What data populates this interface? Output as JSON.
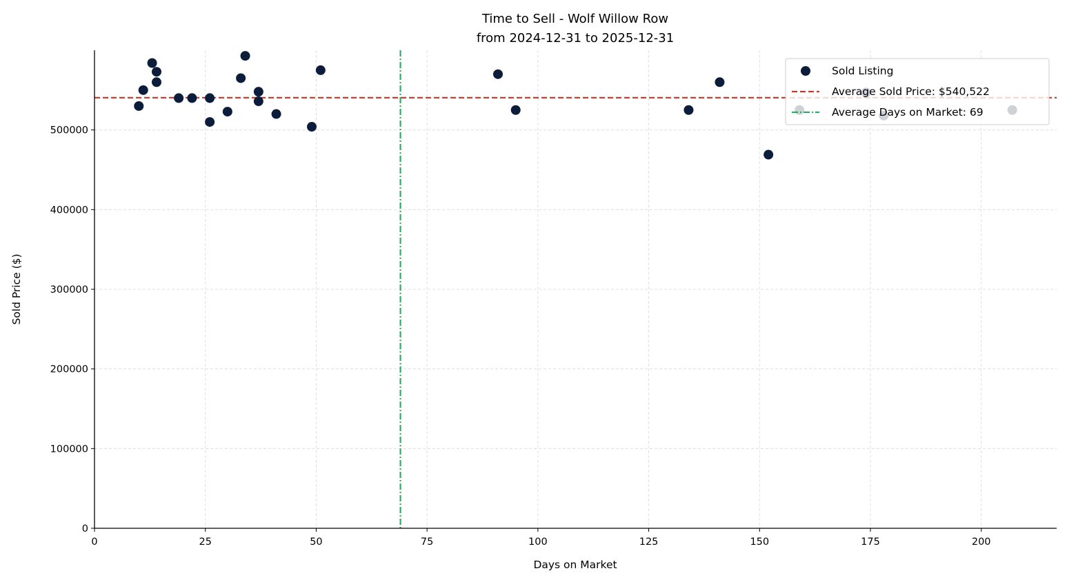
{
  "chart_data": {
    "type": "scatter",
    "title": "Time to Sell - Wolf Willow Row",
    "subtitle": "from 2024-12-31 to 2025-12-31",
    "xlabel": "Days on Market",
    "ylabel": "Sold Price ($)",
    "xlim": [
      0,
      217
    ],
    "ylim": [
      0,
      600000
    ],
    "xticks": [
      0,
      25,
      50,
      75,
      100,
      125,
      150,
      175,
      200
    ],
    "yticks": [
      0,
      100000,
      200000,
      300000,
      400000,
      500000
    ],
    "grid": true,
    "legend_position": "top-right",
    "series": [
      {
        "name": "Sold Listing",
        "color": "#0b1d3a",
        "points": [
          {
            "x": 10,
            "y": 530000
          },
          {
            "x": 11,
            "y": 550000
          },
          {
            "x": 13,
            "y": 584000
          },
          {
            "x": 14,
            "y": 573000
          },
          {
            "x": 14,
            "y": 560000
          },
          {
            "x": 19,
            "y": 540000
          },
          {
            "x": 22,
            "y": 540000
          },
          {
            "x": 26,
            "y": 540000
          },
          {
            "x": 26,
            "y": 510000
          },
          {
            "x": 30,
            "y": 523000
          },
          {
            "x": 33,
            "y": 565000
          },
          {
            "x": 34,
            "y": 593000
          },
          {
            "x": 37,
            "y": 548000
          },
          {
            "x": 37,
            "y": 536000
          },
          {
            "x": 41,
            "y": 520000
          },
          {
            "x": 49,
            "y": 504000
          },
          {
            "x": 51,
            "y": 575000
          },
          {
            "x": 91,
            "y": 570000
          },
          {
            "x": 95,
            "y": 525000
          },
          {
            "x": 134,
            "y": 525000
          },
          {
            "x": 141,
            "y": 560000
          },
          {
            "x": 152,
            "y": 469000
          },
          {
            "x": 159,
            "y": 525000
          },
          {
            "x": 174,
            "y": 547000
          },
          {
            "x": 178,
            "y": 518000
          },
          {
            "x": 207,
            "y": 525000
          }
        ]
      }
    ],
    "reference_lines": {
      "avg_price": {
        "value": 540522,
        "label": "Average Sold Price: $540,522",
        "color": "#c0392b",
        "style": "dashed"
      },
      "avg_days": {
        "value": 69,
        "label": "Average Days on Market: 69",
        "color": "#27ae60",
        "style": "dashdot"
      }
    }
  }
}
